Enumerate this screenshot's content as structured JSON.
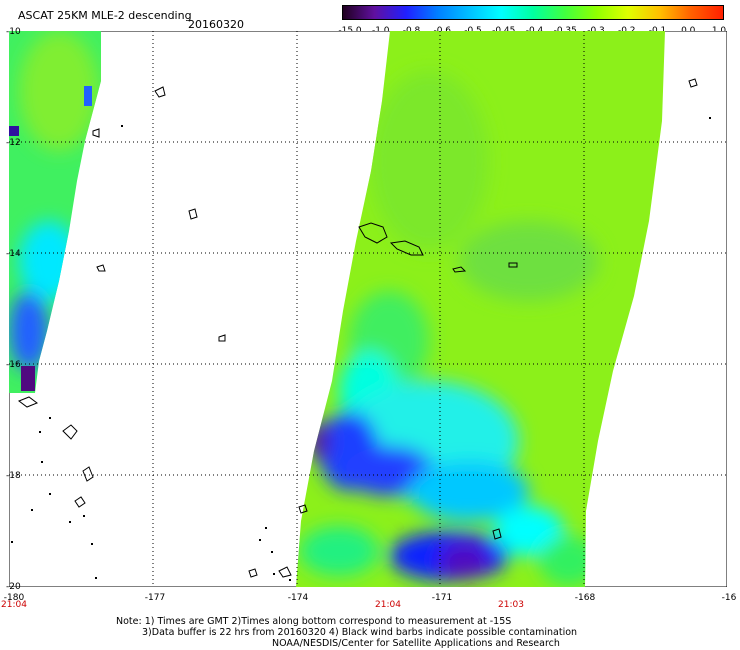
{
  "header": {
    "title": "ASCAT 25KM MLE-2 descending",
    "date": "20160320"
  },
  "colorbar": {
    "labels": [
      "-15.0",
      "-1.0",
      "-0.8",
      "-0.6",
      "-0.5",
      "-0.45",
      "-0.4",
      "-0.35",
      "-0.3",
      "-0.2",
      "-0.1",
      "0.0",
      "1.0"
    ],
    "colors": [
      "#200020",
      "#6010a0",
      "#2020ff",
      "#0080ff",
      "#00c0ff",
      "#00ffff",
      "#00ffa0",
      "#40ff40",
      "#90ff00",
      "#e0ff00",
      "#ffc000",
      "#ff6000",
      "#ff2000"
    ]
  },
  "map": {
    "lat_labels": [
      "-10",
      "-12",
      "-14",
      "-16",
      "-18",
      "-20"
    ],
    "lon_labels": [
      "-180",
      "-177",
      "-174",
      "-171",
      "-168",
      "-16"
    ],
    "time_labels": [
      "21:04",
      "21:04",
      "21:03"
    ]
  },
  "notes": {
    "line1": "Note: 1) Times are GMT 2)Times along bottom correspond to measurement at -15S",
    "line2": "3)Data buffer is 22 hrs from 20160320 4) Black wind barbs indicate possible contamination",
    "line3": "NOAA/NESDIS/Center for Satellite Applications and Research"
  }
}
